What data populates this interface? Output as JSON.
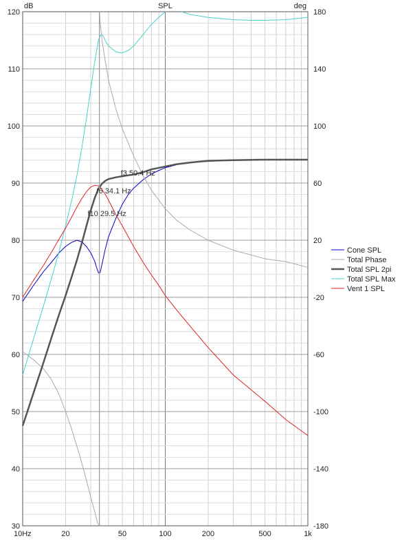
{
  "chart_data": {
    "type": "line",
    "title": "SPL",
    "y_left_unit": "dB",
    "y_right_unit": "deg",
    "x_scale": "log",
    "xlim": [
      10,
      1000
    ],
    "ylim_left": [
      30,
      120
    ],
    "ylim_right": [
      -180,
      180
    ],
    "grid": true,
    "legend_position": "right",
    "x_ticks": [
      {
        "value": 10,
        "label": "10Hz"
      },
      {
        "value": 20,
        "label": "20"
      },
      {
        "value": 50,
        "label": "50"
      },
      {
        "value": 100,
        "label": "100"
      },
      {
        "value": 200,
        "label": "200"
      },
      {
        "value": 500,
        "label": "500"
      },
      {
        "value": 1000,
        "label": "1k"
      }
    ],
    "y_left_ticks": [
      {
        "value": 30,
        "label": "30"
      },
      {
        "value": 40,
        "label": "40"
      },
      {
        "value": 50,
        "label": "50"
      },
      {
        "value": 60,
        "label": "60"
      },
      {
        "value": 70,
        "label": "70"
      },
      {
        "value": 80,
        "label": "80"
      },
      {
        "value": 90,
        "label": "90"
      },
      {
        "value": 100,
        "label": "100"
      },
      {
        "value": 110,
        "label": "110"
      },
      {
        "value": 120,
        "label": "120"
      }
    ],
    "y_right_ticks": [
      {
        "value": -180,
        "label": "-180"
      },
      {
        "value": -140,
        "label": "-140"
      },
      {
        "value": -100,
        "label": "-100"
      },
      {
        "value": -60,
        "label": "-60"
      },
      {
        "value": -20,
        "label": "-20"
      },
      {
        "value": 20,
        "label": "20"
      },
      {
        "value": 60,
        "label": "60"
      },
      {
        "value": 100,
        "label": "100"
      },
      {
        "value": 140,
        "label": "140"
      },
      {
        "value": 180,
        "label": "180"
      }
    ],
    "vertical_marker_hz": 34.5,
    "series": [
      {
        "name": "Cone SPL",
        "color": "#0000cc",
        "width": 1,
        "axis": "left",
        "points": [
          [
            10,
            69.3
          ],
          [
            12,
            72.2
          ],
          [
            14,
            74.5
          ],
          [
            16,
            76.2
          ],
          [
            18,
            77.8
          ],
          [
            20,
            78.9
          ],
          [
            22,
            79.6
          ],
          [
            24,
            80.0
          ],
          [
            26,
            79.7
          ],
          [
            28,
            78.9
          ],
          [
            30,
            77.8
          ],
          [
            32,
            76.3
          ],
          [
            33,
            75.2
          ],
          [
            34,
            74.3
          ],
          [
            34.5,
            74.2
          ],
          [
            35,
            74.4
          ],
          [
            36,
            75.8
          ],
          [
            38,
            78.5
          ],
          [
            40,
            80.6
          ],
          [
            45,
            83.8
          ],
          [
            50,
            86.3
          ],
          [
            55,
            88.0
          ],
          [
            60,
            89.1
          ],
          [
            70,
            90.6
          ],
          [
            80,
            91.6
          ],
          [
            90,
            92.2
          ],
          [
            100,
            92.7
          ],
          [
            120,
            93.2
          ],
          [
            150,
            93.6
          ],
          [
            200,
            93.8
          ],
          [
            300,
            94.0
          ],
          [
            500,
            94.1
          ],
          [
            1000,
            94.1
          ]
        ]
      },
      {
        "name": "Total Phase",
        "color": "#aaaaaa",
        "width": 1,
        "axis": "right",
        "points": [
          [
            10,
            -58
          ],
          [
            12,
            -64
          ],
          [
            14,
            -70
          ],
          [
            16,
            -78
          ],
          [
            18,
            -88
          ],
          [
            20,
            -100
          ],
          [
            22,
            -112
          ],
          [
            25,
            -130
          ],
          [
            28,
            -148
          ],
          [
            30,
            -160
          ],
          [
            32,
            -170
          ],
          [
            33.5,
            -178
          ],
          [
            34.5,
            -180
          ]
        ],
        "points_b": [
          [
            34.5,
            180
          ],
          [
            35,
            172
          ],
          [
            36,
            160
          ],
          [
            38,
            145
          ],
          [
            40,
            132
          ],
          [
            45,
            112
          ],
          [
            50,
            98
          ],
          [
            60,
            79
          ],
          [
            70,
            65
          ],
          [
            80,
            55
          ],
          [
            100,
            42
          ],
          [
            120,
            34
          ],
          [
            150,
            27
          ],
          [
            200,
            20
          ],
          [
            300,
            13
          ],
          [
            500,
            7
          ],
          [
            700,
            5
          ],
          [
            1000,
            1
          ]
        ]
      },
      {
        "name": "Total SPL 2pi",
        "color": "#555555",
        "width": 2.5,
        "axis": "left",
        "points": [
          [
            10,
            47.5
          ],
          [
            12,
            53.5
          ],
          [
            14,
            58.6
          ],
          [
            16,
            63.1
          ],
          [
            18,
            67.0
          ],
          [
            20,
            70.3
          ],
          [
            22,
            73.5
          ],
          [
            24,
            76.5
          ],
          [
            26,
            79.5
          ],
          [
            28,
            82.5
          ],
          [
            30,
            85.2
          ],
          [
            32,
            87.4
          ],
          [
            34,
            89.0
          ],
          [
            36,
            89.9
          ],
          [
            38,
            90.4
          ],
          [
            40,
            90.7
          ],
          [
            45,
            91.0
          ],
          [
            50,
            91.2
          ],
          [
            60,
            91.5
          ],
          [
            70,
            91.9
          ],
          [
            80,
            92.4
          ],
          [
            100,
            92.9
          ],
          [
            120,
            93.3
          ],
          [
            150,
            93.6
          ],
          [
            200,
            93.9
          ],
          [
            300,
            94.0
          ],
          [
            500,
            94.1
          ],
          [
            1000,
            94.1
          ]
        ]
      },
      {
        "name": "Total SPL Max",
        "color": "#48d1cc",
        "width": 1,
        "axis": "left",
        "points": [
          [
            10,
            56.4
          ],
          [
            12,
            63.0
          ],
          [
            14,
            68.5
          ],
          [
            16,
            73.5
          ],
          [
            18,
            78.0
          ],
          [
            20,
            82.5
          ],
          [
            22,
            86.8
          ],
          [
            24,
            91.3
          ],
          [
            26,
            96.2
          ],
          [
            28,
            101.3
          ],
          [
            30,
            106.5
          ],
          [
            32,
            111.2
          ],
          [
            34,
            115.0
          ],
          [
            35,
            115.8
          ],
          [
            36,
            116.0
          ],
          [
            37,
            115.6
          ],
          [
            38,
            114.9
          ],
          [
            40,
            114.0
          ],
          [
            45,
            113.0
          ],
          [
            48,
            112.8
          ],
          [
            50,
            112.8
          ],
          [
            55,
            113.2
          ],
          [
            60,
            114.0
          ],
          [
            70,
            116.0
          ],
          [
            80,
            117.8
          ],
          [
            90,
            119.0
          ],
          [
            100,
            120.0
          ]
        ],
        "points_b": [
          [
            130,
            120.0
          ],
          [
            150,
            119.5
          ],
          [
            200,
            119.0
          ],
          [
            300,
            118.6
          ],
          [
            400,
            118.5
          ],
          [
            500,
            118.5
          ],
          [
            700,
            118.6
          ],
          [
            1000,
            119.0
          ]
        ]
      },
      {
        "name": "Vent 1 SPL",
        "color": "#dd2222",
        "width": 1,
        "axis": "left",
        "points": [
          [
            10,
            70.0
          ],
          [
            12,
            73.1
          ],
          [
            14,
            75.6
          ],
          [
            16,
            78.0
          ],
          [
            18,
            80.2
          ],
          [
            20,
            82.1
          ],
          [
            22,
            84.0
          ],
          [
            24,
            85.8
          ],
          [
            26,
            87.3
          ],
          [
            28,
            88.5
          ],
          [
            30,
            89.3
          ],
          [
            32,
            89.6
          ],
          [
            34,
            89.5
          ],
          [
            36,
            88.9
          ],
          [
            38,
            88.0
          ],
          [
            40,
            87.0
          ],
          [
            45,
            84.5
          ],
          [
            50,
            82.5
          ],
          [
            60,
            78.9
          ],
          [
            70,
            76.1
          ],
          [
            80,
            73.9
          ],
          [
            90,
            72.1
          ],
          [
            100,
            70.3
          ],
          [
            120,
            67.8
          ],
          [
            150,
            64.9
          ],
          [
            200,
            61.2
          ],
          [
            300,
            56.4
          ],
          [
            500,
            51.8
          ],
          [
            700,
            48.6
          ],
          [
            1000,
            45.8
          ]
        ]
      }
    ],
    "annotations": [
      {
        "text": "f3 50.4 Hz",
        "x": 50.4,
        "y": 91.3
      },
      {
        "text": "f6 34.1 Hz",
        "x": 34.1,
        "y": 88.2
      },
      {
        "text": "f10 29.5 Hz",
        "x": 29.5,
        "y": 84.2
      }
    ]
  }
}
